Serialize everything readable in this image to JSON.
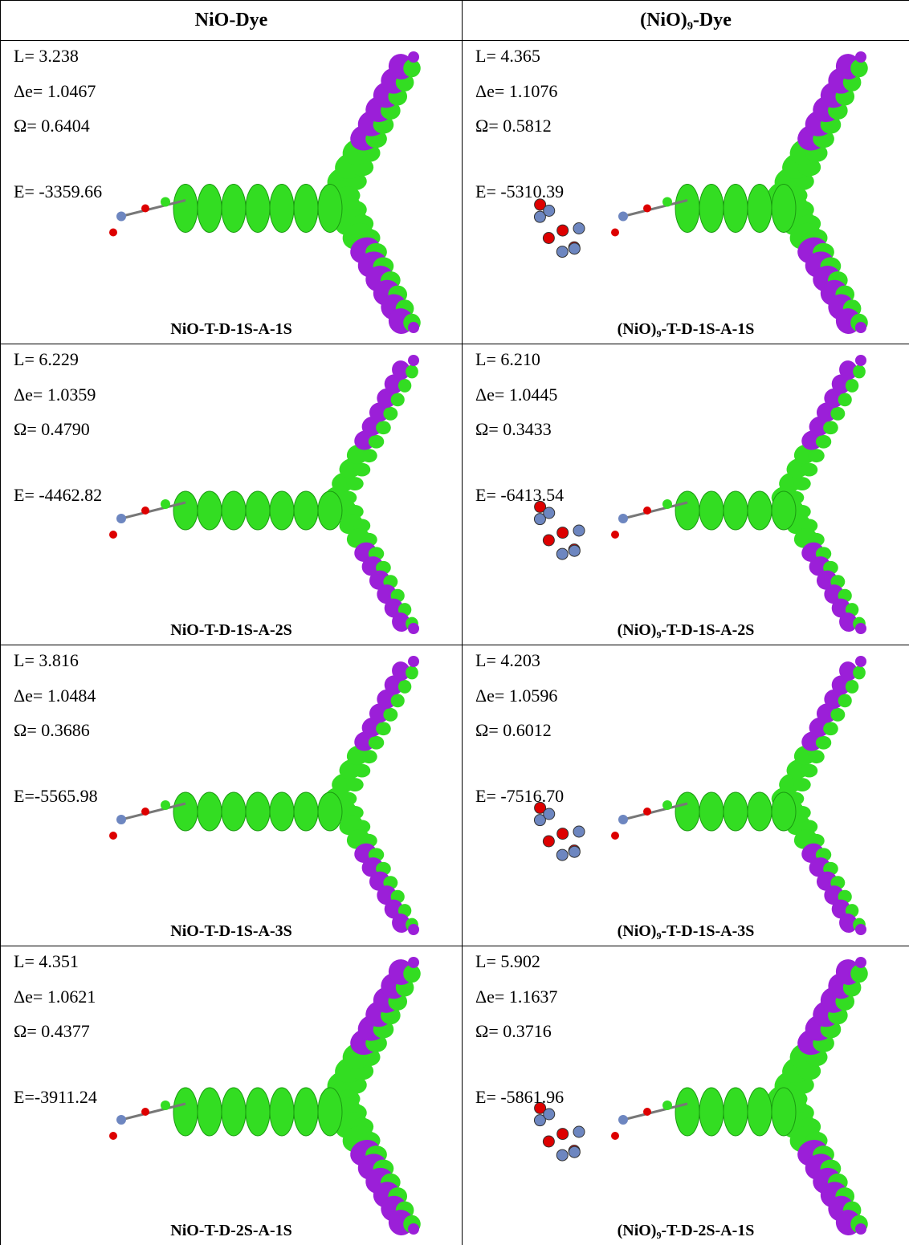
{
  "header": {
    "columns": [
      "NiO-Dye",
      "(NiO)₉-Dye"
    ]
  },
  "table": {
    "rows": [
      [
        {
          "L": "L= 3.238",
          "de": "Δe= 1.0467",
          "omega": "Ω= 0.6404",
          "E": "E= -3359.66",
          "label": "NiO-T-D-1S-A-1S"
        },
        {
          "L": "L= 4.365",
          "de": "Δe= 1.1076",
          "omega": "Ω= 0.5812",
          "E": "E= -5310.39",
          "label": "(NiO)₉-T-D-1S-A-1S"
        }
      ],
      [
        {
          "L": "L= 6.229",
          "de": "Δe= 1.0359",
          "omega": "Ω= 0.4790",
          "E": "E= -4462.82",
          "label": "NiO-T-D-1S-A-2S"
        },
        {
          "L": "L= 6.210",
          "de": "Δe= 1.0445",
          "omega": "Ω= 0.3433",
          "E": "E= -6413.54",
          "label": "(NiO)₉-T-D-1S-A-2S"
        }
      ],
      [
        {
          "L": "L= 3.816",
          "de": "Δe= 1.0484",
          "omega": "Ω= 0.3686",
          "E": "E=-5565.98",
          "label": "NiO-T-D-1S-A-3S"
        },
        {
          "L": "L= 4.203",
          "de": "Δe= 1.0596",
          "omega": "Ω= 0.6012",
          "E": "E= -7516.70",
          "label": "(NiO)₉-T-D-1S-A-3S"
        }
      ],
      [
        {
          "L": "L= 4.351",
          "de": "Δe= 1.0621",
          "omega": "Ω= 0.4377",
          "E": "E=-3911.24",
          "label": "NiO-T-D-2S-A-1S"
        },
        {
          "L": "L= 5.902",
          "de": "Δe= 1.1637",
          "omega": "Ω= 0.3716",
          "E": "E= -5861.96",
          "label": "(NiO)₉-T-D-2S-A-1S"
        }
      ]
    ]
  }
}
